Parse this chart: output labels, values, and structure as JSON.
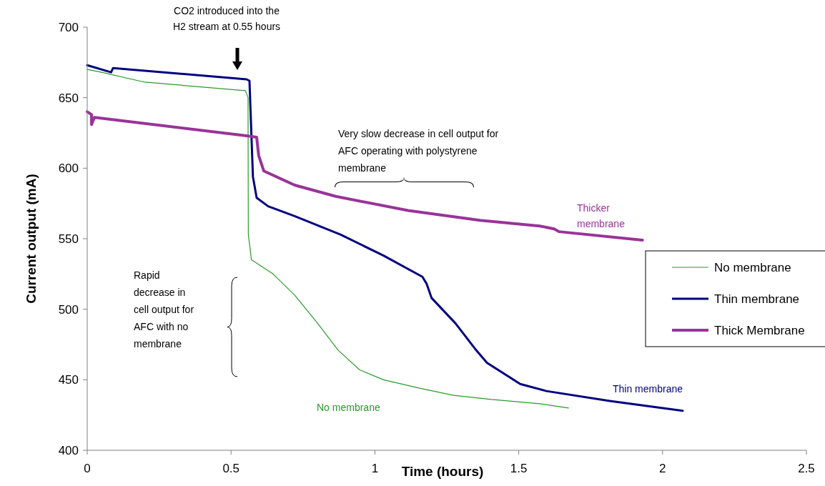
{
  "chart_data": {
    "type": "line",
    "xlabel": "Time (hours)",
    "ylabel": "Current output (mA)",
    "xlim": [
      0,
      2.5
    ],
    "xticks": [
      0,
      0.5,
      1,
      1.5,
      2,
      2.5
    ],
    "ylim": [
      400,
      700
    ],
    "yticks": [
      400,
      450,
      500,
      550,
      600,
      650,
      700
    ],
    "grid": false,
    "legend": "right",
    "marker": "none",
    "line_style": "solid",
    "series": [
      {
        "name": "No membrane",
        "color": "#2a9a2a",
        "x": [
          0,
          0.05,
          0.2,
          0.55,
          0.559,
          0.56,
          0.571,
          0.646,
          0.721,
          0.797,
          0.872,
          0.947,
          1.03,
          1.155,
          1.273,
          1.405,
          1.573,
          1.673
        ],
        "values": [
          670,
          668,
          661,
          655,
          650,
          553,
          535,
          525,
          510,
          491,
          471,
          457,
          450,
          444,
          439,
          436,
          433,
          430
        ]
      },
      {
        "name": "Thin membrane",
        "color": "#000080",
        "x": [
          0,
          0.083,
          0.09,
          0.554,
          0.564,
          0.576,
          0.589,
          0.629,
          0.721,
          0.88,
          1.03,
          1.165,
          1.18,
          1.197,
          1.28,
          1.348,
          1.39,
          1.505,
          1.596,
          1.816,
          2.07
        ],
        "values": [
          673,
          668,
          671,
          663,
          662,
          594,
          579,
          573,
          566,
          553,
          538,
          523,
          518,
          508,
          490,
          472,
          462,
          447,
          442,
          435,
          428
        ]
      },
      {
        "name": "Thick Membrane",
        "color": "#993399",
        "x": [
          0,
          0.015,
          0.015,
          0.025,
          0.554,
          0.589,
          0.596,
          0.614,
          0.721,
          0.864,
          1.115,
          1.365,
          1.573,
          1.623,
          1.64,
          1.93
        ],
        "values": [
          640,
          638,
          631,
          636,
          623,
          622,
          609,
          598,
          588,
          580,
          570,
          563,
          559,
          557,
          555,
          549
        ]
      }
    ],
    "annotations": [
      "CO2 introduced into the\nH2 stream at 0.55 hours",
      "Very slow decrease in cell output for\nAFC operating with polystyrene\nmembrane",
      "Rapid\ndecrease in\ncell output for\nAFC with no\nmembrane",
      "Thicker\nmembrane",
      "Thin membrane",
      "No membrane"
    ]
  }
}
